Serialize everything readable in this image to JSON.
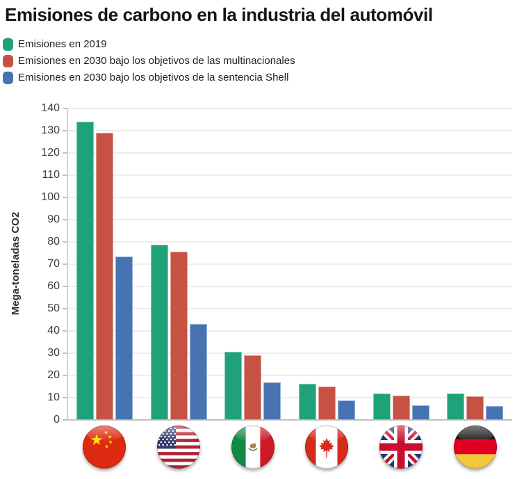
{
  "title": "Emisiones de carbono en la industria del automóvil",
  "y_axis_title": "Mega-toneladas CO2",
  "legend": [
    {
      "label": "Emisiones en 2019",
      "color": "#1fa27a"
    },
    {
      "label": "Emisiones en 2030 bajo los objetivos de las multinacionales",
      "color": "#c65244"
    },
    {
      "label": "Emisiones en 2030 bajo los objetivos de la sentencia Shell",
      "color": "#4673b2"
    }
  ],
  "chart_data": {
    "type": "bar",
    "title": "Emisiones de carbono en la industria del automóvil",
    "xlabel": "",
    "ylabel": "Mega-toneladas CO2",
    "ylim": [
      0,
      140
    ],
    "yticks": [
      0,
      10,
      20,
      30,
      40,
      50,
      60,
      70,
      80,
      90,
      100,
      110,
      120,
      130,
      140
    ],
    "grid": true,
    "legend_position": "top-left",
    "categories": [
      "China",
      "Estados Unidos",
      "México",
      "Canadá",
      "Reino Unido",
      "Alemania"
    ],
    "category_icons": [
      "china-flag",
      "usa-flag",
      "mexico-flag",
      "canada-flag",
      "uk-flag",
      "germany-flag"
    ],
    "series": [
      {
        "name": "Emisiones en 2019",
        "color": "#1fa27a",
        "values": [
          134,
          78.7,
          30.5,
          16.3,
          12,
          11.8
        ]
      },
      {
        "name": "Emisiones en 2030 bajo los objetivos de las multinacionales",
        "color": "#c65244",
        "values": [
          129,
          75.5,
          29,
          15,
          11,
          10.6
        ]
      },
      {
        "name": "Emisiones en 2030 bajo los objetivos de la sentencia Shell",
        "color": "#4673b2",
        "values": [
          73.5,
          43,
          17,
          8.8,
          6.6,
          6.4
        ]
      }
    ]
  }
}
